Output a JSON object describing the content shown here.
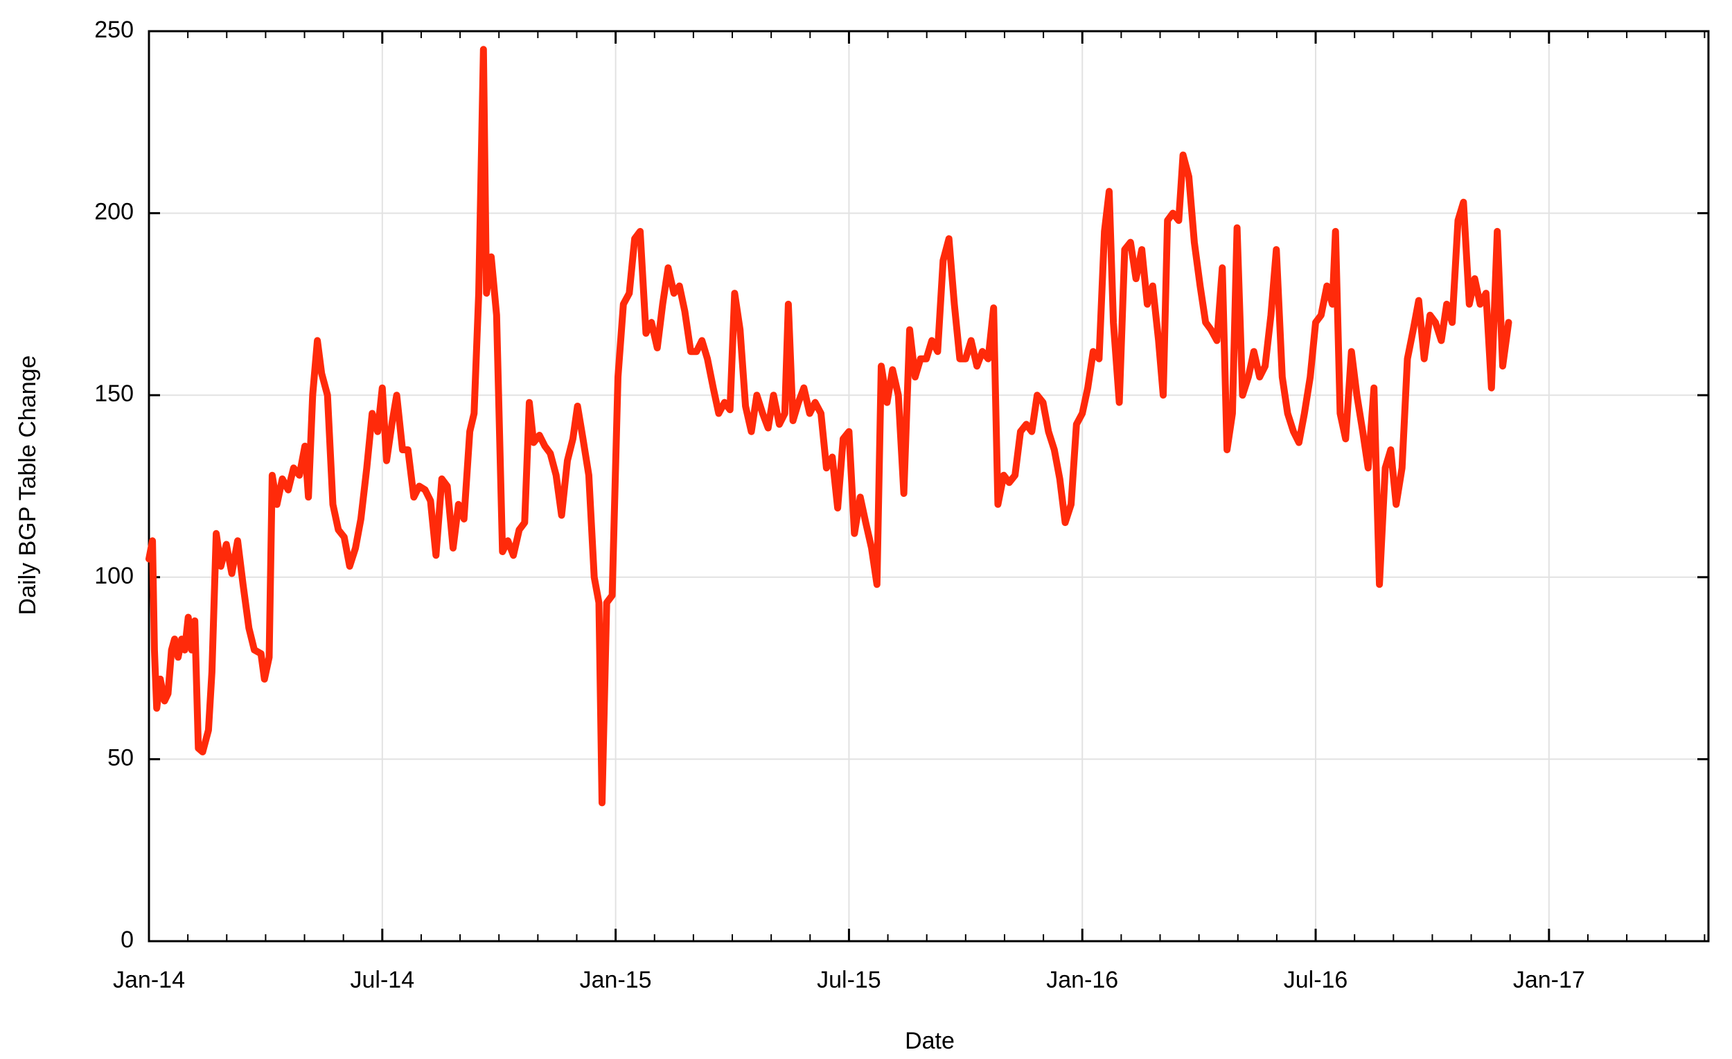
{
  "chart_data": {
    "type": "line",
    "xlabel": "Date",
    "ylabel": "Daily BGP Table Change",
    "xlim": [
      0,
      40.1
    ],
    "ylim": [
      0,
      250
    ],
    "xticks": [
      {
        "value": 0,
        "label": "Jan-14"
      },
      {
        "value": 6,
        "label": "Jul-14"
      },
      {
        "value": 12,
        "label": "Jan-15"
      },
      {
        "value": 18,
        "label": "Jul-15"
      },
      {
        "value": 24,
        "label": "Jan-16"
      },
      {
        "value": 30,
        "label": "Jul-16"
      },
      {
        "value": 36,
        "label": "Jan-17"
      }
    ],
    "xminorticks": [
      1,
      2,
      3,
      4,
      5,
      7,
      8,
      9,
      10,
      11,
      13,
      14,
      15,
      16,
      17,
      19,
      20,
      21,
      22,
      23,
      25,
      26,
      27,
      28,
      29,
      31,
      32,
      33,
      34,
      35,
      37,
      38,
      39,
      40
    ],
    "yticks": [
      0,
      50,
      100,
      150,
      200,
      250
    ],
    "grid": true,
    "series": [
      {
        "color": "#ff2a0a",
        "x": [
          0,
          0.09,
          0.14,
          0.2,
          0.29,
          0.4,
          0.49,
          0.58,
          0.66,
          0.75,
          0.84,
          0.92,
          1.01,
          1.1,
          1.18,
          1.27,
          1.38,
          1.53,
          1.62,
          1.73,
          1.85,
          1.99,
          2.13,
          2.28,
          2.42,
          2.57,
          2.71,
          2.88,
          2.97,
          3.09,
          3.17,
          3.29,
          3.43,
          3.58,
          3.72,
          3.87,
          4.01,
          4.1,
          4.21,
          4.33,
          4.44,
          4.59,
          4.73,
          4.87,
          5.02,
          5.16,
          5.31,
          5.45,
          5.6,
          5.74,
          5.88,
          6,
          6.11,
          6.26,
          6.37,
          6.52,
          6.66,
          6.81,
          6.95,
          7.1,
          7.24,
          7.38,
          7.53,
          7.67,
          7.82,
          7.96,
          8.1,
          8.25,
          8.36,
          8.48,
          8.6,
          8.68,
          8.8,
          8.94,
          9.09,
          9.23,
          9.37,
          9.52,
          9.66,
          9.78,
          9.89,
          10.04,
          10.18,
          10.32,
          10.47,
          10.61,
          10.76,
          10.9,
          11.02,
          11.16,
          11.31,
          11.45,
          11.57,
          11.65,
          11.77,
          11.91,
          12.06,
          12.2,
          12.35,
          12.49,
          12.63,
          12.78,
          12.92,
          13.07,
          13.21,
          13.35,
          13.5,
          13.64,
          13.78,
          13.93,
          14.08,
          14.22,
          14.36,
          14.51,
          14.65,
          14.8,
          14.94,
          15.06,
          15.2,
          15.34,
          15.49,
          15.63,
          15.78,
          15.92,
          16.06,
          16.21,
          16.35,
          16.44,
          16.56,
          16.7,
          16.84,
          16.99,
          17.13,
          17.28,
          17.42,
          17.57,
          17.71,
          17.85,
          18,
          18.14,
          18.29,
          18.43,
          18.58,
          18.72,
          18.83,
          18.98,
          19.12,
          19.27,
          19.41,
          19.56,
          19.7,
          19.84,
          19.99,
          20.13,
          20.28,
          20.42,
          20.57,
          20.71,
          20.85,
          21,
          21.14,
          21.29,
          21.43,
          21.58,
          21.72,
          21.83,
          21.98,
          22.12,
          22.27,
          22.41,
          22.56,
          22.7,
          22.84,
          22.99,
          23.13,
          23.28,
          23.42,
          23.56,
          23.71,
          23.85,
          24,
          24.14,
          24.28,
          24.43,
          24.57,
          24.69,
          24.8,
          24.95,
          25.09,
          25.24,
          25.38,
          25.53,
          25.67,
          25.81,
          25.96,
          26.08,
          26.19,
          26.33,
          26.48,
          26.59,
          26.74,
          26.88,
          27.03,
          27.17,
          27.31,
          27.46,
          27.6,
          27.72,
          27.86,
          27.98,
          28.12,
          28.27,
          28.41,
          28.56,
          28.7,
          28.85,
          28.99,
          29.14,
          29.28,
          29.43,
          29.57,
          29.71,
          29.86,
          30,
          30.14,
          30.29,
          30.43,
          30.51,
          30.63,
          30.77,
          30.92,
          31.06,
          31.21,
          31.35,
          31.5,
          31.64,
          31.79,
          31.93,
          32.07,
          32.22,
          32.36,
          32.51,
          32.65,
          32.79,
          32.94,
          33.08,
          33.23,
          33.37,
          33.51,
          33.66,
          33.8,
          33.95,
          34.09,
          34.23,
          34.38,
          34.52,
          34.67,
          34.81,
          34.96
        ],
        "values": [
          105,
          110,
          80,
          64,
          72,
          66,
          68,
          80,
          83,
          78,
          83,
          80,
          89,
          80,
          88,
          53,
          52,
          58,
          74,
          112,
          103,
          109,
          101,
          110,
          98,
          86,
          80,
          79,
          72,
          78,
          128,
          120,
          127,
          124,
          130,
          128,
          136,
          122,
          150,
          165,
          156,
          150,
          120,
          113,
          111,
          103,
          108,
          116,
          130,
          145,
          140,
          152,
          132,
          143,
          150,
          135,
          135,
          122,
          125,
          124,
          121,
          106,
          127,
          125,
          108,
          120,
          116,
          140,
          145,
          178,
          245,
          178,
          188,
          172,
          107,
          110,
          106,
          113,
          115,
          148,
          137,
          139,
          136,
          134,
          128,
          117,
          132,
          138,
          147,
          138,
          128,
          100,
          93,
          38,
          93,
          95,
          155,
          175,
          178,
          193,
          195,
          167,
          170,
          163,
          175,
          185,
          178,
          180,
          173,
          162,
          162,
          165,
          160,
          152,
          145,
          148,
          146,
          178,
          168,
          147,
          140,
          150,
          145,
          141,
          150,
          142,
          145,
          175,
          143,
          148,
          152,
          145,
          148,
          145,
          130,
          133,
          119,
          138,
          140,
          112,
          122,
          115,
          108,
          98,
          158,
          148,
          157,
          150,
          123,
          168,
          155,
          160,
          160,
          165,
          162,
          187,
          193,
          175,
          160,
          160,
          165,
          158,
          162,
          160,
          174,
          120,
          128,
          126,
          128,
          140,
          142,
          140,
          150,
          148,
          140,
          135,
          127,
          115,
          120,
          142,
          145,
          152,
          162,
          160,
          195,
          206,
          170,
          148,
          190,
          192,
          182,
          190,
          175,
          180,
          165,
          150,
          198,
          200,
          198,
          216,
          210,
          192,
          180,
          170,
          168,
          165,
          185,
          135,
          145,
          196,
          150,
          155,
          162,
          155,
          158,
          172,
          190,
          155,
          145,
          140,
          137,
          145,
          155,
          170,
          172,
          180,
          175,
          195,
          145,
          138,
          162,
          150,
          140,
          130,
          152,
          98,
          130,
          135,
          120,
          130,
          160,
          168,
          176,
          160,
          172,
          170,
          165,
          175,
          170,
          198,
          203,
          175,
          182,
          175,
          178,
          152,
          195,
          158,
          170
        ]
      }
    ]
  }
}
